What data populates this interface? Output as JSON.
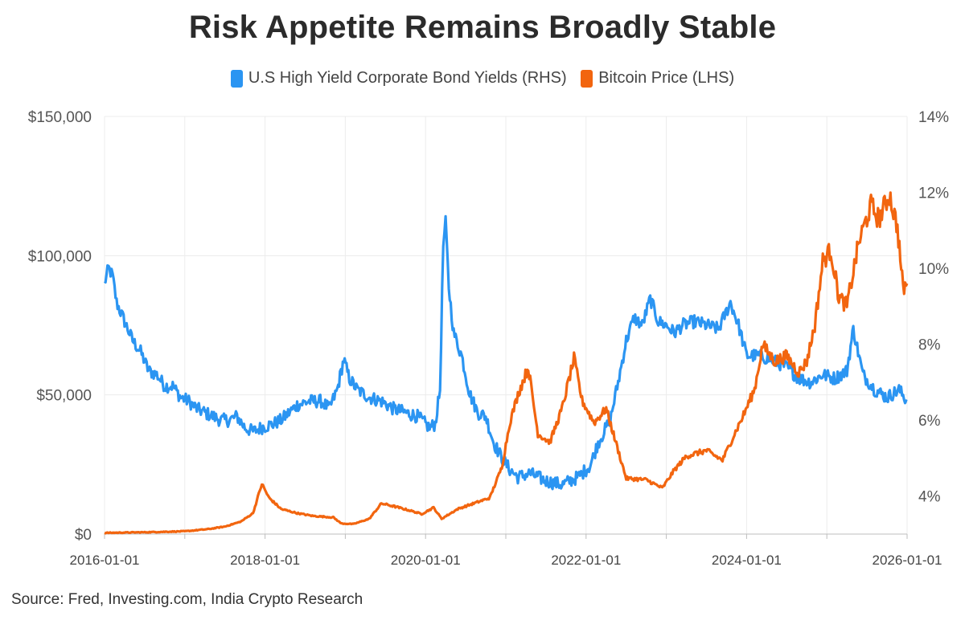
{
  "chart_data": {
    "type": "line",
    "title": "Risk Appetite Remains Broadly Stable",
    "source": "Source: Fred, Investing.com, India Crypto Research",
    "xlim": [
      "2016-01-01",
      "2026-01-01"
    ],
    "x_ticks": [
      "2016-01-01",
      "2018-01-01",
      "2020-01-01",
      "2022-01-01",
      "2024-01-01",
      "2026-01-01"
    ],
    "y_left": {
      "label": "Bitcoin Price (LHS)",
      "ylim": [
        0,
        150000
      ],
      "ticks": [
        "$0",
        "$50,000",
        "$100,000",
        "$150,000"
      ],
      "tick_values": [
        0,
        50000,
        100000,
        150000
      ]
    },
    "y_right": {
      "label": "U.S High Yield Corporate Bond Yields (RHS)",
      "ylim": [
        3,
        14
      ],
      "ticks": [
        "4%",
        "6%",
        "8%",
        "10%",
        "12%",
        "14%"
      ],
      "tick_values": [
        4,
        6,
        8,
        10,
        12,
        14
      ]
    },
    "grid": true,
    "legend_position": "top-center",
    "series": [
      {
        "name": "U.S High Yield Corporate Bond Yields (RHS)",
        "axis": "right",
        "color": "#2b95f2",
        "points": [
          [
            2016.0,
            9.6
          ],
          [
            2016.05,
            10.0
          ],
          [
            2016.1,
            9.8
          ],
          [
            2016.15,
            9.1
          ],
          [
            2016.25,
            8.6
          ],
          [
            2016.35,
            8.1
          ],
          [
            2016.45,
            7.8
          ],
          [
            2016.55,
            7.3
          ],
          [
            2016.65,
            7.2
          ],
          [
            2016.75,
            6.9
          ],
          [
            2016.85,
            6.9
          ],
          [
            2016.95,
            6.6
          ],
          [
            2017.05,
            6.5
          ],
          [
            2017.15,
            6.3
          ],
          [
            2017.25,
            6.2
          ],
          [
            2017.35,
            6.1
          ],
          [
            2017.45,
            6.0
          ],
          [
            2017.55,
            6.0
          ],
          [
            2017.65,
            6.1
          ],
          [
            2017.75,
            5.8
          ],
          [
            2017.85,
            5.7
          ],
          [
            2017.95,
            5.8
          ],
          [
            2018.1,
            5.9
          ],
          [
            2018.2,
            6.0
          ],
          [
            2018.3,
            6.2
          ],
          [
            2018.4,
            6.4
          ],
          [
            2018.55,
            6.5
          ],
          [
            2018.7,
            6.5
          ],
          [
            2018.8,
            6.3
          ],
          [
            2018.9,
            6.8
          ],
          [
            2018.98,
            7.6
          ],
          [
            2019.05,
            7.1
          ],
          [
            2019.15,
            6.8
          ],
          [
            2019.3,
            6.6
          ],
          [
            2019.45,
            6.5
          ],
          [
            2019.6,
            6.3
          ],
          [
            2019.75,
            6.2
          ],
          [
            2019.9,
            6.1
          ],
          [
            2020.05,
            5.8
          ],
          [
            2020.12,
            5.9
          ],
          [
            2020.18,
            6.8
          ],
          [
            2020.22,
            10.6
          ],
          [
            2020.25,
            11.2
          ],
          [
            2020.29,
            9.5
          ],
          [
            2020.35,
            8.3
          ],
          [
            2020.45,
            7.7
          ],
          [
            2020.55,
            6.7
          ],
          [
            2020.65,
            6.2
          ],
          [
            2020.75,
            6.1
          ],
          [
            2020.85,
            5.4
          ],
          [
            2020.95,
            5.0
          ],
          [
            2021.05,
            4.7
          ],
          [
            2021.15,
            4.5
          ],
          [
            2021.3,
            4.6
          ],
          [
            2021.5,
            4.4
          ],
          [
            2021.7,
            4.3
          ],
          [
            2021.9,
            4.5
          ],
          [
            2022.05,
            4.8
          ],
          [
            2022.15,
            5.4
          ],
          [
            2022.3,
            6.0
          ],
          [
            2022.4,
            7.0
          ],
          [
            2022.5,
            8.1
          ],
          [
            2022.6,
            8.7
          ],
          [
            2022.7,
            8.5
          ],
          [
            2022.8,
            9.2
          ],
          [
            2022.9,
            8.6
          ],
          [
            2023.0,
            8.5
          ],
          [
            2023.1,
            8.3
          ],
          [
            2023.2,
            8.5
          ],
          [
            2023.35,
            8.6
          ],
          [
            2023.5,
            8.5
          ],
          [
            2023.65,
            8.4
          ],
          [
            2023.8,
            9.1
          ],
          [
            2023.9,
            8.5
          ],
          [
            2024.0,
            7.7
          ],
          [
            2024.15,
            7.7
          ],
          [
            2024.3,
            7.6
          ],
          [
            2024.5,
            7.4
          ],
          [
            2024.65,
            7.1
          ],
          [
            2024.8,
            7.0
          ],
          [
            2024.95,
            7.2
          ],
          [
            2025.1,
            7.1
          ],
          [
            2025.25,
            7.3
          ],
          [
            2025.33,
            8.4
          ],
          [
            2025.45,
            7.2
          ],
          [
            2025.6,
            6.8
          ],
          [
            2025.75,
            6.6
          ],
          [
            2025.9,
            6.8
          ],
          [
            2026.0,
            6.5
          ]
        ]
      },
      {
        "name": "Bitcoin Price (LHS)",
        "axis": "left",
        "color": "#f2650f",
        "points": [
          [
            2016.0,
            430
          ],
          [
            2016.5,
            650
          ],
          [
            2017.0,
            1000
          ],
          [
            2017.3,
            1800
          ],
          [
            2017.5,
            2700
          ],
          [
            2017.7,
            4500
          ],
          [
            2017.85,
            7500
          ],
          [
            2017.96,
            18000
          ],
          [
            2018.05,
            13000
          ],
          [
            2018.2,
            9000
          ],
          [
            2018.4,
            7500
          ],
          [
            2018.6,
            6500
          ],
          [
            2018.85,
            6000
          ],
          [
            2018.95,
            3800
          ],
          [
            2019.1,
            3600
          ],
          [
            2019.3,
            5500
          ],
          [
            2019.45,
            11000
          ],
          [
            2019.6,
            10000
          ],
          [
            2019.8,
            8500
          ],
          [
            2019.95,
            7200
          ],
          [
            2020.1,
            9500
          ],
          [
            2020.2,
            5500
          ],
          [
            2020.4,
            9000
          ],
          [
            2020.6,
            11000
          ],
          [
            2020.8,
            13000
          ],
          [
            2020.95,
            24000
          ],
          [
            2021.05,
            40000
          ],
          [
            2021.15,
            50000
          ],
          [
            2021.28,
            60000
          ],
          [
            2021.4,
            36000
          ],
          [
            2021.55,
            33000
          ],
          [
            2021.7,
            45000
          ],
          [
            2021.85,
            63000
          ],
          [
            2021.95,
            48000
          ],
          [
            2022.1,
            40000
          ],
          [
            2022.25,
            45000
          ],
          [
            2022.4,
            30000
          ],
          [
            2022.5,
            20000
          ],
          [
            2022.75,
            19500
          ],
          [
            2022.95,
            16500
          ],
          [
            2023.1,
            23000
          ],
          [
            2023.25,
            28000
          ],
          [
            2023.5,
            30000
          ],
          [
            2023.7,
            26500
          ],
          [
            2023.85,
            36000
          ],
          [
            2023.95,
            42000
          ],
          [
            2024.1,
            52000
          ],
          [
            2024.2,
            68000
          ],
          [
            2024.35,
            62000
          ],
          [
            2024.5,
            64000
          ],
          [
            2024.65,
            58000
          ],
          [
            2024.75,
            62000
          ],
          [
            2024.85,
            75000
          ],
          [
            2024.95,
            98000
          ],
          [
            2025.05,
            102000
          ],
          [
            2025.15,
            85000
          ],
          [
            2025.25,
            82000
          ],
          [
            2025.4,
            105000
          ],
          [
            2025.55,
            118000
          ],
          [
            2025.65,
            113000
          ],
          [
            2025.78,
            122000
          ],
          [
            2025.88,
            110000
          ],
          [
            2025.95,
            88000
          ],
          [
            2026.0,
            90000
          ]
        ]
      }
    ]
  }
}
